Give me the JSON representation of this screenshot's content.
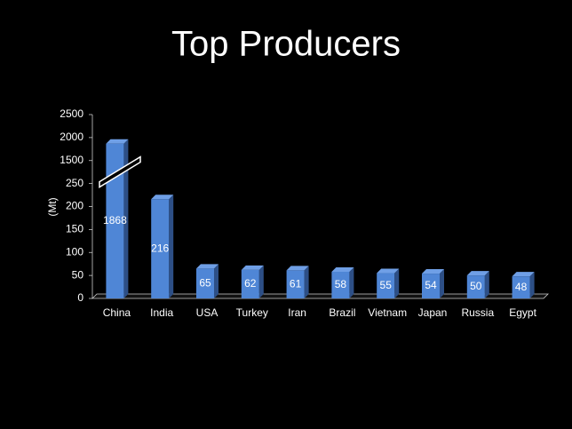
{
  "chart_data": {
    "type": "bar",
    "title": "Top Producers",
    "y_label": "(Mt)",
    "categories": [
      "China",
      "India",
      "USA",
      "Turkey",
      "Iran",
      "Brazil",
      "Vietnam",
      "Japan",
      "Russia",
      "Egypt"
    ],
    "values": [
      1868,
      216,
      65,
      62,
      61,
      58,
      55,
      54,
      50,
      48
    ],
    "color": "#4f86d6",
    "ylim": [
      0,
      2500
    ],
    "yticks": [
      0,
      50,
      100,
      150,
      200,
      250,
      1500,
      2000,
      2500
    ],
    "axis_break": [
      250,
      1500
    ]
  }
}
